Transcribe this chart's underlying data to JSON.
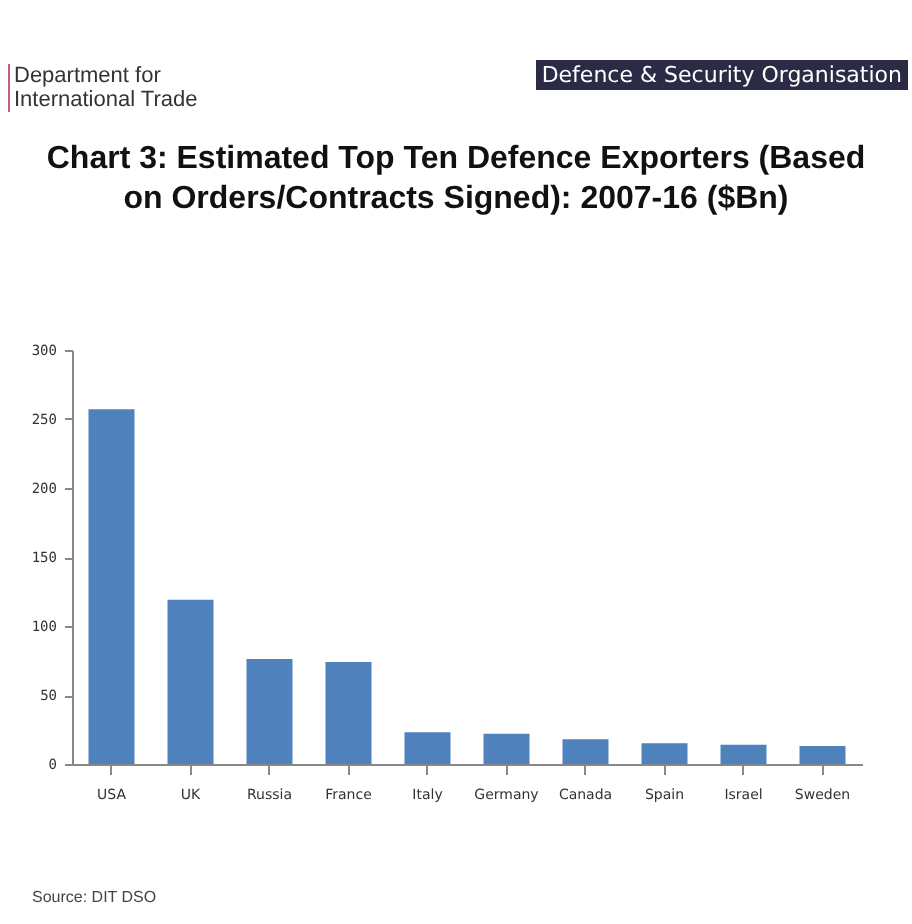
{
  "chart_data": {
    "type": "bar",
    "title": "Chart 3: Estimated Top Ten Defence Exporters (Based on Orders/Contracts Signed): 2007-16 ($Bn)",
    "categories": [
      "USA",
      "UK",
      "Russia",
      "France",
      "Italy",
      "Germany",
      "Canada",
      "Spain",
      "Israel",
      "Sweden"
    ],
    "values": [
      257,
      119,
      76,
      74,
      23,
      22,
      18,
      15,
      14,
      13
    ],
    "color": "#4f81bd",
    "ylim": [
      0,
      300
    ],
    "yticks": [
      0,
      50,
      100,
      150,
      200,
      250,
      300
    ],
    "grid": false,
    "annotations": [
      "Department for International Trade",
      "Defence & Security Organisation",
      "Source: DIT DSO"
    ]
  }
}
